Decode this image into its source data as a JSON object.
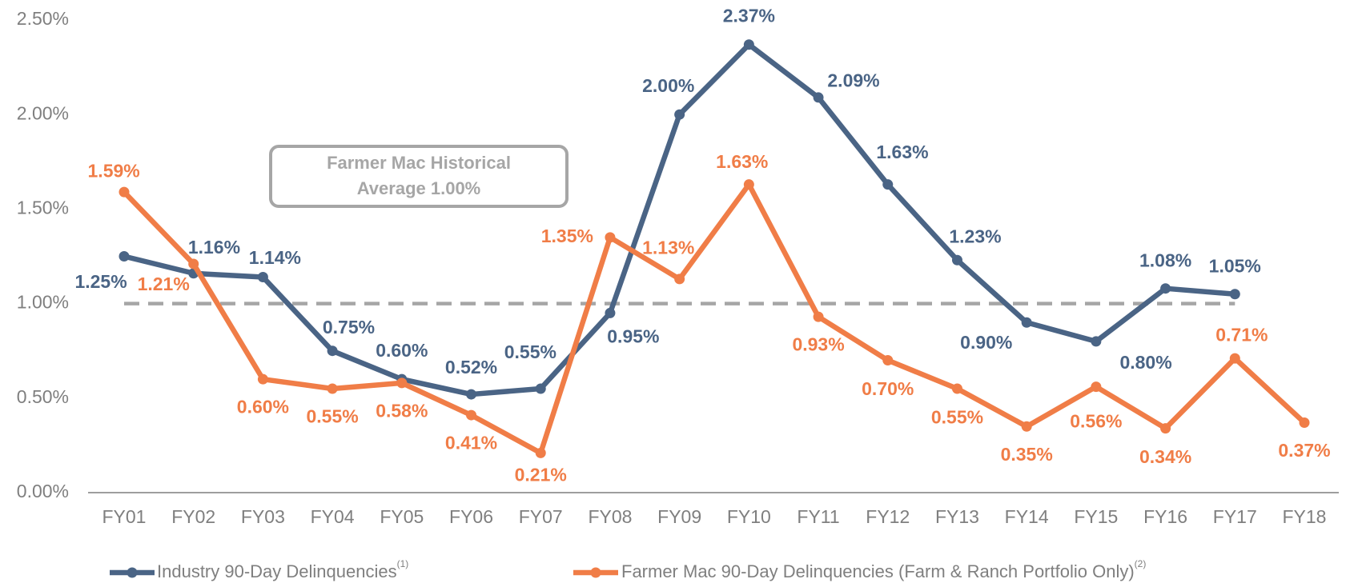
{
  "chart_data": {
    "type": "line",
    "categories": [
      "FY01",
      "FY02",
      "FY03",
      "FY04",
      "FY05",
      "FY06",
      "FY07",
      "FY08",
      "FY09",
      "FY10",
      "FY11",
      "FY12",
      "FY13",
      "FY14",
      "FY15",
      "FY16",
      "FY17",
      "FY18"
    ],
    "series": [
      {
        "name": "Industry 90-Day Delinquencies",
        "note": "(1)",
        "color": "#4a6485",
        "values": [
          1.25,
          1.16,
          1.14,
          0.75,
          0.6,
          0.52,
          0.55,
          0.95,
          2.0,
          2.37,
          2.09,
          1.63,
          1.23,
          0.9,
          0.8,
          1.08,
          1.05,
          null
        ],
        "value_labels": [
          "1.25%",
          "1.16%",
          "1.14%",
          "0.75%",
          "0.60%",
          "0.52%",
          "0.55%",
          "0.95%",
          "2.00%",
          "2.37%",
          "2.09%",
          "1.63%",
          "1.23%",
          "0.90%",
          "0.80%",
          "1.08%",
          "1.05%",
          null
        ]
      },
      {
        "name": "Farmer Mac 90-Day Delinquencies (Farm & Ranch Portfolio Only)",
        "note": "(2)",
        "color": "#f07d47",
        "values": [
          1.59,
          1.21,
          0.6,
          0.55,
          0.58,
          0.41,
          0.21,
          1.35,
          1.13,
          1.63,
          0.93,
          0.7,
          0.55,
          0.35,
          0.56,
          0.34,
          0.71,
          0.37
        ],
        "value_labels": [
          "1.59%",
          "1.21%",
          "0.60%",
          "0.55%",
          "0.58%",
          "0.41%",
          "0.21%",
          "1.35%",
          "1.13%",
          "1.63%",
          "0.93%",
          "0.70%",
          "0.55%",
          "0.35%",
          "0.56%",
          "0.34%",
          "0.71%",
          "0.37%"
        ]
      }
    ],
    "ylim": [
      0,
      2.5
    ],
    "yticks": [
      {
        "value": 0,
        "label": "0.00%"
      },
      {
        "value": 0.5,
        "label": "0.50%"
      },
      {
        "value": 1,
        "label": "1.00%"
      },
      {
        "value": 1.5,
        "label": "1.50%"
      },
      {
        "value": 2,
        "label": "2.00%"
      },
      {
        "value": 2.5,
        "label": "2.50%"
      }
    ],
    "reference_value": 1,
    "annotation": [
      "Farmer Mac Historical",
      "Average 1.00%"
    ],
    "legend": "bottom"
  }
}
